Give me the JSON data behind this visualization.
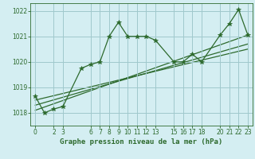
{
  "title": "Graphe pression niveau de la mer (hPa)",
  "bg_color": "#d4eef2",
  "grid_color": "#a0c8cc",
  "line_color": "#2d6a2d",
  "xlim": [
    -0.5,
    23.5
  ],
  "ylim": [
    1017.5,
    1022.3
  ],
  "xticks": [
    0,
    2,
    3,
    6,
    7,
    8,
    9,
    10,
    11,
    12,
    13,
    15,
    16,
    17,
    18,
    20,
    21,
    22,
    23
  ],
  "yticks": [
    1018,
    1019,
    1020,
    1021,
    1022
  ],
  "main_x": [
    0,
    1,
    2,
    3,
    5,
    6,
    7,
    8,
    9,
    10,
    11,
    12,
    13,
    15,
    16,
    17,
    18,
    20,
    21,
    22,
    23
  ],
  "main_y": [
    1018.65,
    1018.0,
    1018.15,
    1018.25,
    1019.75,
    1019.9,
    1020.0,
    1021.0,
    1021.55,
    1021.0,
    1021.0,
    1021.0,
    1020.85,
    1020.0,
    1020.0,
    1020.3,
    1020.0,
    1021.05,
    1021.5,
    1022.05,
    1021.05
  ],
  "trend1_x": [
    0,
    23
  ],
  "trend1_y": [
    1018.1,
    1021.05
  ],
  "trend2_x": [
    0,
    23
  ],
  "trend2_y": [
    1018.3,
    1020.7
  ],
  "trend3_x": [
    0,
    23
  ],
  "trend3_y": [
    1018.5,
    1020.5
  ],
  "marker": "*",
  "markersize": 4,
  "linewidth": 0.9
}
